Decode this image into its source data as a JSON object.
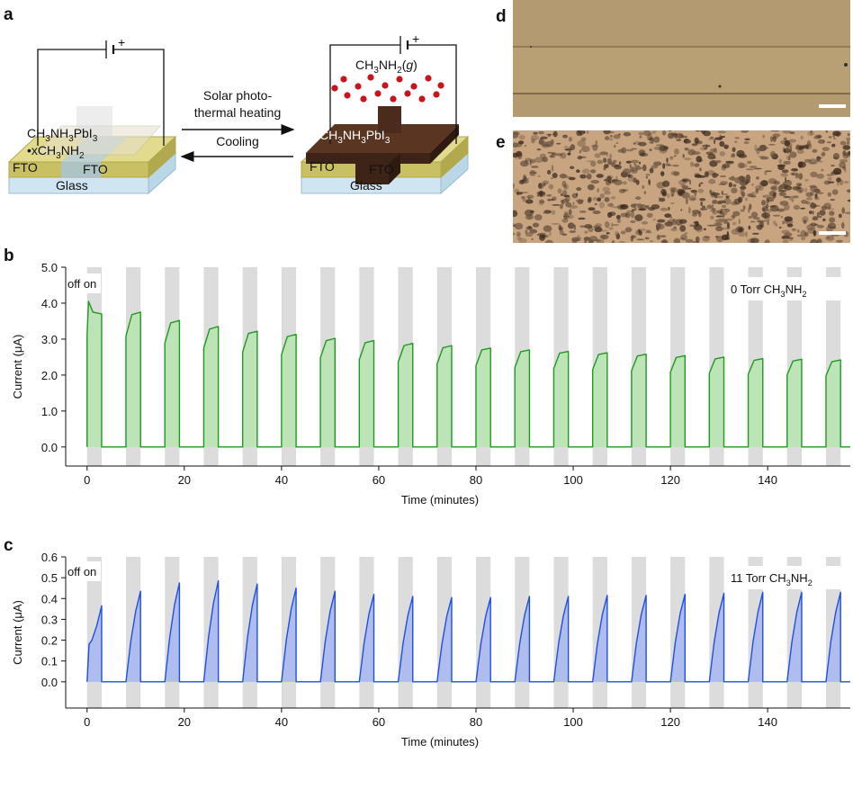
{
  "panel_labels": [
    "a",
    "b",
    "c",
    "d",
    "e"
  ],
  "diagram": {
    "left_formula": [
      {
        "t": "CH"
      },
      {
        "sub": "3"
      },
      {
        "t": "NH"
      },
      {
        "sub": "3"
      },
      {
        "t": "PbI"
      },
      {
        "sub": "3"
      }
    ],
    "left_adduct": [
      {
        "t": "•xCH"
      },
      {
        "sub": "3"
      },
      {
        "t": "NH"
      },
      {
        "sub": "2"
      }
    ],
    "left_fto": [
      "FTO",
      "FTO"
    ],
    "left_glass": "Glass",
    "right_formula": [
      {
        "t": "CH"
      },
      {
        "sub": "3"
      },
      {
        "t": "NH"
      },
      {
        "sub": "3"
      },
      {
        "t": "PbI"
      },
      {
        "sub": "3"
      }
    ],
    "right_fto": [
      "FTO",
      "FTO"
    ],
    "right_glass": "Glass",
    "gas": [
      {
        "t": "CH"
      },
      {
        "sub": "3"
      },
      {
        "t": "NH"
      },
      {
        "sub": "2"
      },
      {
        "t": "("
      },
      {
        "i": "g"
      },
      {
        "t": ")"
      }
    ],
    "plus": [
      "+",
      "+"
    ],
    "forward": [
      "Solar photo-",
      "thermal heating"
    ],
    "backward": "Cooling"
  },
  "chart_data": [
    {
      "type": "line",
      "x_label": "Time (minutes)",
      "y_label": "Current (μA)",
      "state_label": "off on",
      "annotation": [
        {
          "t": "0 Torr CH"
        },
        {
          "sub": "3"
        },
        {
          "t": "NH"
        },
        {
          "sub": "2"
        }
      ],
      "xlim": [
        -4.4,
        157
      ],
      "xticks": [
        0,
        20,
        40,
        60,
        80,
        100,
        120,
        140
      ],
      "ylim": [
        -0.53,
        5.0
      ],
      "yticks": [
        {
          "value": 0,
          "label": "0.0"
        },
        {
          "value": 1,
          "label": "1.0"
        },
        {
          "value": 2,
          "label": "2.0"
        },
        {
          "value": 3,
          "label": "3.0"
        },
        {
          "value": 4,
          "label": "4.0"
        },
        {
          "value": 5,
          "label": "5.0"
        }
      ],
      "on_intervals": [
        [
          0,
          3
        ],
        [
          8,
          11
        ],
        [
          16,
          19
        ],
        [
          24,
          27
        ],
        [
          32,
          35
        ],
        [
          40,
          43
        ],
        [
          48,
          51
        ],
        [
          56,
          59
        ],
        [
          64,
          67
        ],
        [
          72,
          75
        ],
        [
          80,
          83
        ],
        [
          88,
          91
        ],
        [
          96,
          99
        ],
        [
          104,
          107
        ],
        [
          112,
          115
        ],
        [
          120,
          123
        ],
        [
          128,
          131
        ],
        [
          136,
          139
        ],
        [
          144,
          147
        ],
        [
          152,
          155
        ]
      ],
      "shade_color": "#dcdcdc",
      "series": [
        {
          "color": "#1e9a1e",
          "fill": "#b9e4b2",
          "x": [
            0,
            0,
            0.3,
            1.2,
            3,
            3,
            8,
            8,
            9.2,
            11,
            11,
            16,
            16,
            17.2,
            19,
            19,
            24,
            24,
            25.2,
            27,
            27,
            32,
            32,
            33.2,
            35,
            35,
            40,
            40,
            41.2,
            43,
            43,
            48,
            48,
            49.2,
            51,
            51,
            56,
            56,
            57.2,
            59,
            59,
            64,
            64,
            65.2,
            67,
            67,
            72,
            72,
            73.2,
            75,
            75,
            80,
            80,
            81.2,
            83,
            83,
            88,
            88,
            89.2,
            91,
            91,
            96,
            96,
            97.2,
            99,
            99,
            104,
            104,
            105.2,
            107,
            107,
            112,
            112,
            113.2,
            115,
            115,
            120,
            120,
            121.2,
            123,
            123,
            128,
            128,
            129.2,
            131,
            131,
            136,
            136,
            137.2,
            139,
            139,
            144,
            144,
            145.2,
            147,
            147,
            152,
            152,
            153.2,
            155,
            155,
            157
          ],
          "values": [
            0,
            3.1,
            4.05,
            3.75,
            3.7,
            0,
            0,
            3.08,
            3.68,
            3.75,
            0,
            0,
            2.89,
            3.45,
            3.52,
            0,
            0,
            2.75,
            3.28,
            3.35,
            0,
            0,
            2.64,
            3.16,
            3.22,
            0,
            0,
            2.57,
            3.07,
            3.13,
            0,
            0,
            2.48,
            2.96,
            3.02,
            0,
            0,
            2.43,
            2.9,
            2.96,
            0,
            0,
            2.36,
            2.82,
            2.88,
            0,
            0,
            2.31,
            2.76,
            2.82,
            0,
            0,
            2.26,
            2.7,
            2.75,
            0,
            0,
            2.21,
            2.65,
            2.7,
            0,
            0,
            2.18,
            2.61,
            2.66,
            0,
            0,
            2.15,
            2.57,
            2.62,
            0,
            0,
            2.12,
            2.53,
            2.58,
            0,
            0,
            2.08,
            2.49,
            2.54,
            0,
            0,
            2.05,
            2.45,
            2.5,
            0,
            0,
            2.02,
            2.41,
            2.46,
            0,
            0,
            2,
            2.39,
            2.44,
            0,
            0,
            1.98,
            2.37,
            2.42,
            0,
            0
          ]
        }
      ]
    },
    {
      "type": "line",
      "x_label": "Time (minutes)",
      "y_label": "Current (μA)",
      "state_label": "off on",
      "annotation": [
        {
          "t": "11 Torr CH"
        },
        {
          "sub": "3"
        },
        {
          "t": "NH"
        },
        {
          "sub": "2"
        }
      ],
      "xlim": [
        -4.4,
        157
      ],
      "xticks": [
        0,
        20,
        40,
        60,
        80,
        100,
        120,
        140
      ],
      "ylim": [
        -0.126,
        0.6
      ],
      "yticks": [
        {
          "value": 0,
          "label": "0.0"
        },
        0.1,
        0.2,
        0.3,
        0.4,
        0.5,
        0.6
      ],
      "on_intervals": [
        [
          0,
          3
        ],
        [
          8,
          11
        ],
        [
          16,
          19
        ],
        [
          24,
          27
        ],
        [
          32,
          35
        ],
        [
          40,
          43
        ],
        [
          48,
          51
        ],
        [
          56,
          59
        ],
        [
          64,
          67
        ],
        [
          72,
          75
        ],
        [
          80,
          83
        ],
        [
          88,
          91
        ],
        [
          96,
          99
        ],
        [
          104,
          107
        ],
        [
          112,
          115
        ],
        [
          120,
          123
        ],
        [
          128,
          131
        ],
        [
          136,
          139
        ],
        [
          144,
          147
        ],
        [
          152,
          155
        ]
      ],
      "shade_color": "#dcdcdc",
      "series": [
        {
          "color": "#1f4fe0",
          "fill": "#aab9ef",
          "x": [
            0,
            0.4,
            1,
            2,
            3,
            3,
            8,
            9,
            10,
            11,
            11,
            16,
            17,
            18,
            19,
            19,
            24,
            25,
            26,
            27,
            27,
            32,
            33,
            34,
            35,
            35,
            40,
            41,
            42,
            43,
            43,
            48,
            49,
            50,
            51,
            51,
            56,
            57,
            58,
            59,
            59,
            64,
            65,
            66,
            67,
            67,
            72,
            73,
            74,
            75,
            75,
            80,
            81,
            82,
            83,
            83,
            88,
            89,
            90,
            91,
            91,
            96,
            97,
            98,
            99,
            99,
            104,
            105,
            106,
            107,
            107,
            112,
            113,
            114,
            115,
            115,
            120,
            121,
            122,
            123,
            123,
            128,
            129,
            130,
            131,
            131,
            136,
            137,
            138,
            139,
            139,
            144,
            145,
            146,
            147,
            147,
            152,
            153,
            154,
            155,
            155,
            157
          ],
          "values": [
            0,
            0.18,
            0.2,
            0.27,
            0.365,
            0,
            0,
            0.196,
            0.339,
            0.435,
            0,
            0,
            0.214,
            0.371,
            0.475,
            0,
            0,
            0.218,
            0.378,
            0.485,
            0,
            0,
            0.212,
            0.367,
            0.47,
            0,
            0,
            0.203,
            0.351,
            0.45,
            0,
            0,
            0.196,
            0.339,
            0.435,
            0,
            0,
            0.189,
            0.328,
            0.42,
            0,
            0,
            0.185,
            0.32,
            0.41,
            0,
            0,
            0.182,
            0.316,
            0.405,
            0,
            0,
            0.182,
            0.316,
            0.405,
            0,
            0,
            0.185,
            0.32,
            0.41,
            0,
            0,
            0.185,
            0.32,
            0.41,
            0,
            0,
            0.187,
            0.324,
            0.415,
            0,
            0,
            0.187,
            0.324,
            0.415,
            0,
            0,
            0.189,
            0.328,
            0.42,
            0,
            0,
            0.191,
            0.332,
            0.425,
            0,
            0,
            0.194,
            0.335,
            0.43,
            0,
            0,
            0.194,
            0.335,
            0.43,
            0,
            0,
            0.194,
            0.335,
            0.43,
            0,
            0
          ]
        }
      ]
    }
  ]
}
